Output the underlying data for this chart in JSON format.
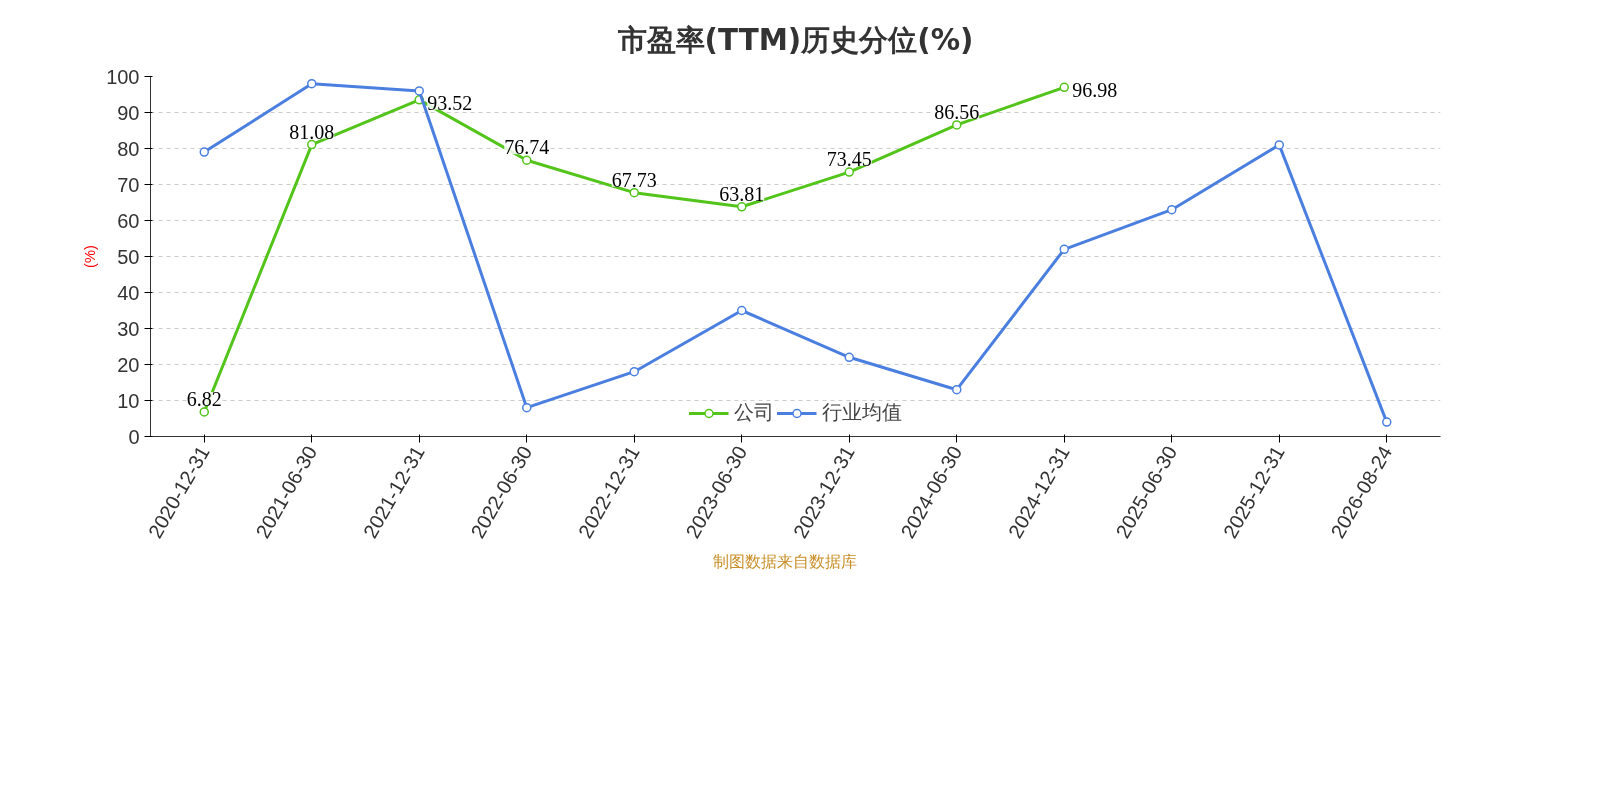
{
  "chart_data": {
    "type": "line",
    "title": "市盈率(TTM)历史分位(%)",
    "ylabel": "(%)",
    "categories": [
      "2020-12-31",
      "2021-06-30",
      "2021-12-31",
      "2022-06-30",
      "2022-12-31",
      "2023-06-30",
      "2023-12-31",
      "2024-06-30",
      "2024-12-31",
      "2025-06-30",
      "2025-12-31",
      "2026-08-24"
    ],
    "series": [
      {
        "name": "公司",
        "color": "#52c41a",
        "data_labels": true,
        "values": [
          6.82,
          81.08,
          93.52,
          76.74,
          67.73,
          63.81,
          73.45,
          86.56,
          96.98,
          null,
          null,
          null
        ]
      },
      {
        "name": "行业均值",
        "color": "#4a7fe0",
        "values": [
          79,
          98,
          96,
          8,
          18,
          35,
          22,
          13,
          52,
          63,
          81,
          4
        ]
      }
    ],
    "ylim": [
      0,
      100
    ],
    "yticks": [
      0,
      10,
      20,
      30,
      40,
      50,
      60,
      70,
      80,
      90,
      100
    ],
    "grid": "y",
    "legend": "bottom",
    "marker": "circle",
    "line_style": "solid",
    "annotations": [
      "制图数据来自数据库"
    ]
  }
}
